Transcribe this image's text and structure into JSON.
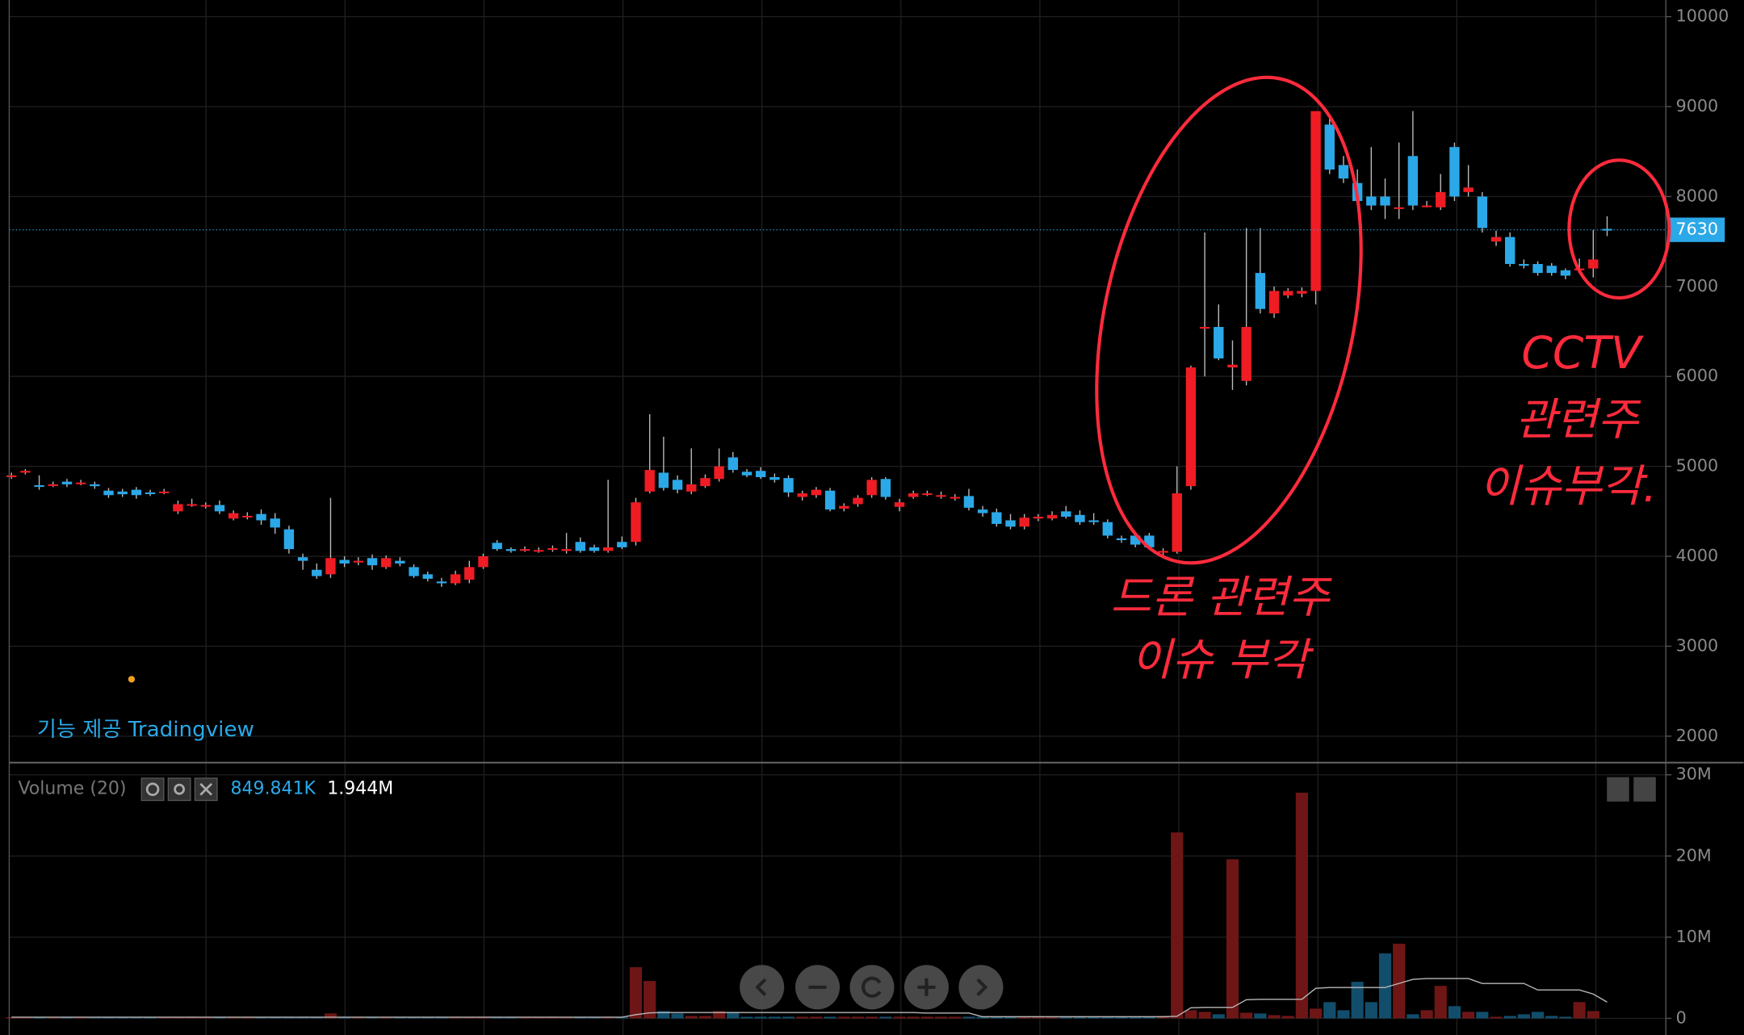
{
  "chart_data": [
    {
      "type": "candlestick",
      "credit": "기능 제공 Tradingview",
      "annotations": [
        [
          "드론 관련주",
          "이슈 부각"
        ],
        [
          "CCTV",
          "관련주",
          "이슈부각."
        ]
      ],
      "ylim": [
        1706,
        10185
      ],
      "yticks": [
        2000,
        3000,
        4000,
        5000,
        6000,
        7000,
        8000,
        9000,
        10000
      ],
      "last_price": 7630,
      "up_color": "#ef1c24",
      "down_color": "#2ba8e8",
      "open": [
        4880,
        4930,
        4790,
        4790,
        4830,
        4810,
        4800,
        4730,
        4720,
        4740,
        4710,
        4710,
        4500,
        4570,
        4560,
        4570,
        4420,
        4440,
        4470,
        4420,
        4300,
        3990,
        3850,
        3800,
        3960,
        3940,
        3980,
        3880,
        3950,
        3880,
        3800,
        3720,
        3700,
        3740,
        3880,
        4150,
        4080,
        4070,
        4070,
        4080,
        4060,
        4160,
        4100,
        4060,
        4160,
        4160,
        4720,
        4930,
        4850,
        4720,
        4780,
        4860,
        5100,
        4940,
        4950,
        4880,
        4870,
        4660,
        4680,
        4730,
        4530,
        4580,
        4680,
        4860,
        4550,
        4660,
        4700,
        4680,
        4660,
        4670,
        4520,
        4490,
        4400,
        4330,
        4420,
        4420,
        4500,
        4460,
        4400,
        4380,
        4200,
        4230,
        4230,
        4040,
        4050,
        4780,
        6540,
        6550,
        6100,
        5950,
        7150,
        6700,
        6900,
        6920,
        6950,
        8800,
        8350,
        8150,
        8000,
        8000,
        7880,
        8450,
        7900,
        7880,
        8550,
        8050,
        8000,
        7500,
        7550,
        7250,
        7250,
        7230,
        7180,
        7180,
        7200,
        7640
      ],
      "high": [
        4930,
        4970,
        4900,
        4830,
        4860,
        4850,
        4830,
        4760,
        4750,
        4770,
        4740,
        4750,
        4620,
        4640,
        4600,
        4620,
        4510,
        4490,
        4520,
        4480,
        4340,
        4030,
        3920,
        4650,
        4000,
        3990,
        4020,
        4010,
        3990,
        3910,
        3830,
        3760,
        3840,
        3950,
        4030,
        4180,
        4100,
        4110,
        4100,
        4120,
        4260,
        4210,
        4130,
        4850,
        4220,
        4650,
        5580,
        5330,
        4900,
        5200,
        4910,
        5200,
        5160,
        4970,
        4990,
        4920,
        4900,
        4730,
        4770,
        4760,
        4590,
        4680,
        4880,
        4880,
        4640,
        4730,
        4730,
        4720,
        4690,
        4750,
        4560,
        4530,
        4470,
        4470,
        4470,
        4500,
        4560,
        4510,
        4480,
        4410,
        4230,
        4260,
        4260,
        4090,
        5000,
        6120,
        7600,
        6800,
        6400,
        7650,
        7650,
        7000,
        6980,
        6990,
        8950,
        8900,
        8450,
        8300,
        8550,
        8200,
        8600,
        8950,
        7950,
        8250,
        8600,
        8350,
        8050,
        7620,
        7600,
        7300,
        7280,
        7260,
        7200,
        7310,
        7630,
        7780
      ],
      "low": [
        4860,
        4910,
        4740,
        4770,
        4770,
        4790,
        4750,
        4650,
        4660,
        4640,
        4670,
        4690,
        4470,
        4550,
        4530,
        4470,
        4400,
        4410,
        4350,
        4250,
        4030,
        3850,
        3750,
        3760,
        3880,
        3900,
        3850,
        3860,
        3890,
        3760,
        3720,
        3660,
        3680,
        3700,
        3860,
        4060,
        4040,
        4050,
        4040,
        4050,
        4030,
        4040,
        4040,
        4040,
        4080,
        4120,
        4700,
        4730,
        4700,
        4690,
        4760,
        4830,
        4930,
        4880,
        4860,
        4820,
        4660,
        4620,
        4650,
        4500,
        4500,
        4550,
        4650,
        4630,
        4500,
        4640,
        4670,
        4640,
        4620,
        4510,
        4440,
        4330,
        4300,
        4300,
        4390,
        4400,
        4420,
        4350,
        4350,
        4200,
        4150,
        4100,
        4080,
        4010,
        4030,
        4740,
        6000,
        6180,
        5850,
        5900,
        6700,
        6650,
        6870,
        6880,
        6800,
        8250,
        8150,
        7900,
        7850,
        7750,
        7750,
        7850,
        7880,
        7850,
        7950,
        8000,
        7600,
        7450,
        7220,
        7200,
        7120,
        7120,
        7080,
        7150,
        7100,
        7560
      ],
      "close": [
        4900,
        4950,
        4780,
        4800,
        4800,
        4820,
        4780,
        4680,
        4690,
        4680,
        4700,
        4720,
        4580,
        4580,
        4570,
        4500,
        4480,
        4450,
        4400,
        4320,
        4080,
        3950,
        3780,
        3980,
        3920,
        3950,
        3900,
        3980,
        3920,
        3780,
        3750,
        3700,
        3800,
        3880,
        4000,
        4080,
        4060,
        4080,
        4070,
        4090,
        4080,
        4060,
        4060,
        4100,
        4100,
        4600,
        4960,
        4760,
        4740,
        4800,
        4870,
        5000,
        4960,
        4900,
        4880,
        4850,
        4710,
        4700,
        4740,
        4520,
        4560,
        4650,
        4850,
        4660,
        4600,
        4700,
        4700,
        4680,
        4660,
        4540,
        4480,
        4360,
        4330,
        4430,
        4440,
        4460,
        4440,
        4380,
        4380,
        4230,
        4180,
        4130,
        4100,
        4060,
        4700,
        6100,
        6550,
        6200,
        6130,
        6550,
        6750,
        6950,
        6950,
        6950,
        8950,
        8300,
        8200,
        7950,
        7900,
        7900,
        7880,
        7900,
        7900,
        8050,
        8000,
        8100,
        7650,
        7550,
        7250,
        7230,
        7150,
        7150,
        7120,
        7200,
        7300,
        7630
      ]
    },
    {
      "type": "bar",
      "title": "Volume (20)",
      "legend_values": [
        "849.841K",
        "1.944M"
      ],
      "ylim": [
        -2050000,
        31500000
      ],
      "yticks": [
        0,
        {
          "value": 10000000,
          "label": "10M"
        },
        {
          "value": 20000000,
          "label": "20M"
        },
        {
          "value": 30000000,
          "label": "30M"
        }
      ],
      "up_color": "#6e1616",
      "down_color": "#124e6c",
      "ma_color": "#b8b8b8",
      "values": [
        150000,
        150000,
        150000,
        150000,
        150000,
        150000,
        150000,
        150000,
        150000,
        150000,
        150000,
        150000,
        150000,
        150000,
        150000,
        150000,
        150000,
        150000,
        150000,
        150000,
        150000,
        150000,
        150000,
        600000,
        150000,
        150000,
        150000,
        150000,
        150000,
        150000,
        150000,
        150000,
        150000,
        150000,
        150000,
        150000,
        150000,
        150000,
        150000,
        150000,
        150000,
        150000,
        150000,
        150000,
        150000,
        6300000,
        4600000,
        900000,
        600000,
        300000,
        300000,
        900000,
        800000,
        200000,
        200000,
        200000,
        200000,
        200000,
        200000,
        200000,
        200000,
        200000,
        200000,
        200000,
        200000,
        200000,
        200000,
        200000,
        200000,
        200000,
        200000,
        200000,
        200000,
        200000,
        200000,
        200000,
        200000,
        200000,
        200000,
        200000,
        200000,
        200000,
        200000,
        300000,
        22900000,
        1000000,
        800000,
        500000,
        19600000,
        700000,
        600000,
        400000,
        300000,
        27800000,
        1200000,
        2000000,
        1000000,
        4500000,
        2000000,
        8000000,
        9200000,
        500000,
        1000000,
        4000000,
        1500000,
        800000,
        800000,
        200000,
        300000,
        500000,
        800000,
        300000,
        200000,
        2000000,
        900000
      ],
      "volume_ma": [
        150000,
        150000,
        150000,
        150000,
        150000,
        150000,
        150000,
        150000,
        150000,
        150000,
        150000,
        150000,
        150000,
        150000,
        150000,
        150000,
        150000,
        150000,
        150000,
        150000,
        150000,
        150000,
        150000,
        150000,
        150000,
        150000,
        150000,
        150000,
        150000,
        150000,
        150000,
        150000,
        150000,
        150000,
        150000,
        150000,
        150000,
        150000,
        150000,
        150000,
        150000,
        150000,
        150000,
        150000,
        150000,
        450000,
        680000,
        720000,
        720000,
        720000,
        720000,
        720000,
        720000,
        720000,
        720000,
        720000,
        720000,
        720000,
        720000,
        720000,
        720000,
        720000,
        720000,
        720000,
        720000,
        720000,
        650000,
        650000,
        650000,
        650000,
        200000,
        200000,
        200000,
        200000,
        200000,
        200000,
        200000,
        200000,
        200000,
        200000,
        200000,
        200000,
        200000,
        200000,
        250000,
        1300000,
        1350000,
        1350000,
        1350000,
        2300000,
        2350000,
        2350000,
        2350000,
        2350000,
        3700000,
        3800000,
        3800000,
        3800000,
        3800000,
        3800000,
        4300000,
        4800000,
        4900000,
        4900000,
        4900000,
        4900000,
        4300000,
        4300000,
        4300000,
        4300000,
        3500000,
        3500000,
        3500000,
        3500000,
        3000000,
        2000000
      ]
    }
  ]
}
